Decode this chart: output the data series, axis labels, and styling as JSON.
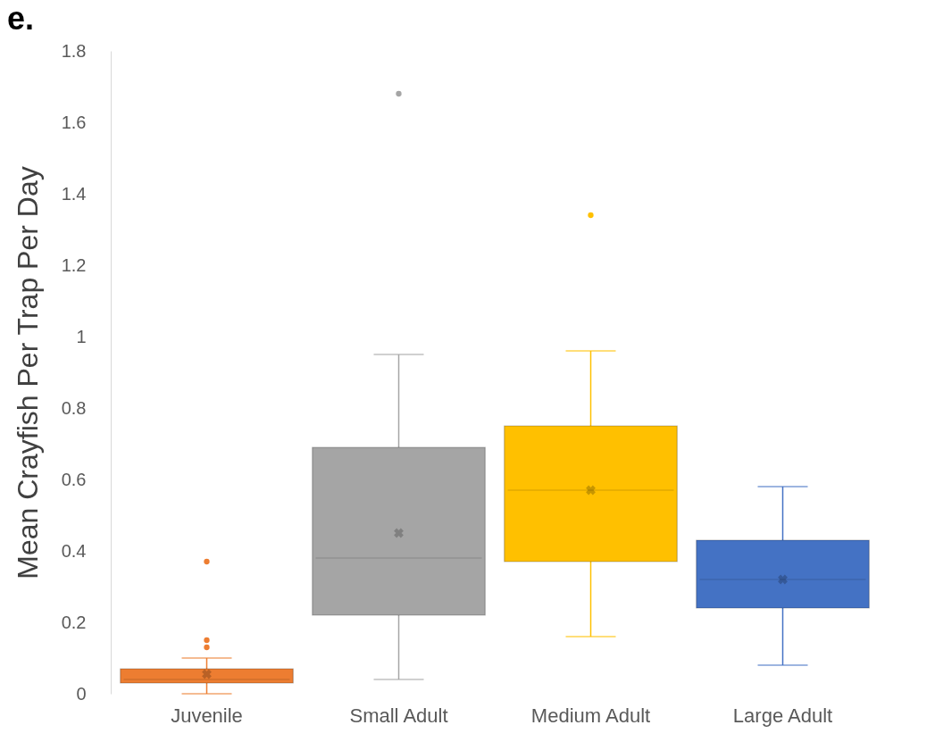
{
  "chart_data": {
    "type": "box",
    "ylabel": "Mean Crayfish Per Trap Per Day",
    "annotations": [
      "e."
    ],
    "categories": [
      "Juvenile",
      "Small Adult",
      "Medium Adult",
      "Large Adult"
    ],
    "colors": [
      "#ed7d31",
      "#a5a5a5",
      "#ffc000",
      "#4472c4"
    ],
    "boxes": [
      {
        "low": 0.0,
        "q1": 0.03,
        "median": 0.04,
        "q3": 0.07,
        "high": 0.1,
        "mean": 0.055,
        "outliers": [
          0.37,
          0.15,
          0.13
        ]
      },
      {
        "low": 0.04,
        "q1": 0.22,
        "median": 0.38,
        "q3": 0.69,
        "high": 0.95,
        "mean": 0.45,
        "outliers": [
          1.68
        ]
      },
      {
        "low": 0.16,
        "q1": 0.37,
        "median": 0.57,
        "q3": 0.75,
        "high": 0.96,
        "mean": 0.57,
        "outliers": [
          1.34
        ]
      },
      {
        "low": 0.08,
        "q1": 0.24,
        "median": 0.32,
        "q3": 0.43,
        "high": 0.58,
        "mean": 0.32
      }
    ],
    "ylim": [
      0,
      1.8
    ],
    "yticks": [
      0,
      0.2,
      0.4,
      0.6,
      0.8,
      1,
      1.2,
      1.4,
      1.6,
      1.8
    ],
    "grid": false,
    "legend": false
  }
}
